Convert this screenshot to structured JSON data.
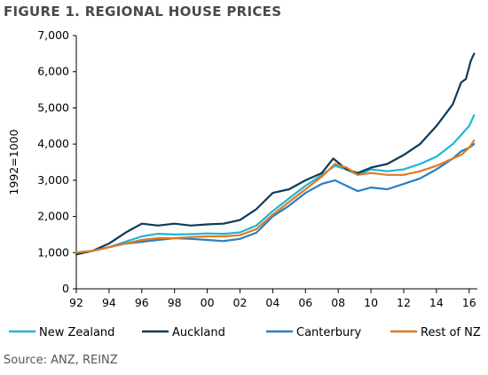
{
  "title": "FIGURE 1. REGIONAL HOUSE PRICES",
  "source": "Source: ANZ, REINZ",
  "chart_data": {
    "type": "line",
    "ylabel": "1992=1000",
    "xlabel": "",
    "ylim": [
      0,
      7000
    ],
    "xlim": [
      92,
      116.5
    ],
    "yticks": [
      0,
      1000,
      2000,
      3000,
      4000,
      5000,
      6000,
      7000
    ],
    "ytick_labels": [
      "0",
      "1,000",
      "2,000",
      "3,000",
      "4,000",
      "5,000",
      "6,000",
      "7,000"
    ],
    "xticks": [
      92,
      94,
      96,
      98,
      100,
      102,
      104,
      106,
      108,
      110,
      112,
      114,
      116
    ],
    "xtick_labels": [
      "92",
      "94",
      "96",
      "98",
      "00",
      "02",
      "04",
      "06",
      "08",
      "10",
      "12",
      "14",
      "16"
    ],
    "grid": false,
    "legend_position": "bottom",
    "series": [
      {
        "name": "New Zealand",
        "color": "#1fb5d6",
        "points": [
          [
            92,
            1000
          ],
          [
            93,
            1050
          ],
          [
            94,
            1150
          ],
          [
            95,
            1300
          ],
          [
            96,
            1450
          ],
          [
            97,
            1520
          ],
          [
            98,
            1500
          ],
          [
            99,
            1510
          ],
          [
            100,
            1530
          ],
          [
            101,
            1520
          ],
          [
            102,
            1560
          ],
          [
            103,
            1750
          ],
          [
            104,
            2150
          ],
          [
            105,
            2500
          ],
          [
            106,
            2850
          ],
          [
            107,
            3150
          ],
          [
            107.8,
            3400
          ],
          [
            108.5,
            3300
          ],
          [
            109.2,
            3150
          ],
          [
            110,
            3300
          ],
          [
            111,
            3250
          ],
          [
            112,
            3300
          ],
          [
            113,
            3450
          ],
          [
            114,
            3650
          ],
          [
            115,
            4000
          ],
          [
            115.5,
            4250
          ],
          [
            116,
            4500
          ],
          [
            116.3,
            4800
          ]
        ]
      },
      {
        "name": "Auckland",
        "color": "#0e3a5a",
        "points": [
          [
            92,
            950
          ],
          [
            93,
            1050
          ],
          [
            94,
            1250
          ],
          [
            95,
            1550
          ],
          [
            96,
            1800
          ],
          [
            97,
            1750
          ],
          [
            98,
            1800
          ],
          [
            99,
            1750
          ],
          [
            100,
            1780
          ],
          [
            101,
            1800
          ],
          [
            102,
            1900
          ],
          [
            103,
            2200
          ],
          [
            104,
            2650
          ],
          [
            105,
            2750
          ],
          [
            106,
            3000
          ],
          [
            107,
            3200
          ],
          [
            107.7,
            3600
          ],
          [
            108.5,
            3300
          ],
          [
            109.2,
            3200
          ],
          [
            110,
            3350
          ],
          [
            111,
            3450
          ],
          [
            112,
            3700
          ],
          [
            113,
            4000
          ],
          [
            114,
            4500
          ],
          [
            115,
            5100
          ],
          [
            115.5,
            5700
          ],
          [
            115.8,
            5800
          ],
          [
            116.1,
            6300
          ],
          [
            116.3,
            6500
          ]
        ]
      },
      {
        "name": "Canterbury",
        "color": "#2b7ec1",
        "points": [
          [
            92,
            1000
          ],
          [
            93,
            1050
          ],
          [
            94,
            1150
          ],
          [
            95,
            1250
          ],
          [
            96,
            1300
          ],
          [
            97,
            1350
          ],
          [
            98,
            1400
          ],
          [
            99,
            1380
          ],
          [
            100,
            1350
          ],
          [
            101,
            1320
          ],
          [
            102,
            1380
          ],
          [
            103,
            1550
          ],
          [
            104,
            2000
          ],
          [
            105,
            2300
          ],
          [
            106,
            2650
          ],
          [
            107,
            2900
          ],
          [
            107.8,
            3000
          ],
          [
            108.5,
            2850
          ],
          [
            109.2,
            2700
          ],
          [
            110,
            2800
          ],
          [
            111,
            2750
          ],
          [
            112,
            2900
          ],
          [
            113,
            3050
          ],
          [
            114,
            3300
          ],
          [
            115,
            3600
          ],
          [
            115.5,
            3800
          ],
          [
            116,
            3900
          ],
          [
            116.3,
            4000
          ]
        ]
      },
      {
        "name": "Rest of NZ",
        "color": "#e07a1f",
        "points": [
          [
            92,
            1000
          ],
          [
            93,
            1050
          ],
          [
            94,
            1150
          ],
          [
            95,
            1250
          ],
          [
            96,
            1350
          ],
          [
            97,
            1400
          ],
          [
            98,
            1400
          ],
          [
            99,
            1430
          ],
          [
            100,
            1450
          ],
          [
            101,
            1450
          ],
          [
            102,
            1480
          ],
          [
            103,
            1650
          ],
          [
            104,
            2050
          ],
          [
            105,
            2400
          ],
          [
            106,
            2750
          ],
          [
            107,
            3100
          ],
          [
            107.8,
            3450
          ],
          [
            108.5,
            3350
          ],
          [
            109.2,
            3150
          ],
          [
            110,
            3200
          ],
          [
            111,
            3150
          ],
          [
            112,
            3150
          ],
          [
            113,
            3250
          ],
          [
            114,
            3400
          ],
          [
            115,
            3600
          ],
          [
            115.5,
            3700
          ],
          [
            116,
            3900
          ],
          [
            116.3,
            4100
          ]
        ]
      }
    ]
  }
}
